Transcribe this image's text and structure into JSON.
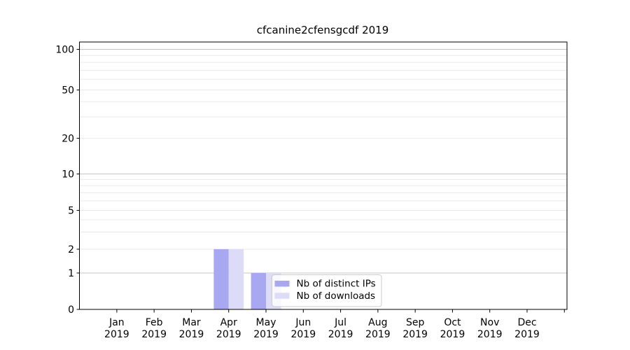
{
  "chart_data": {
    "type": "bar",
    "title": "cfcanine2cfensgcdf 2019",
    "categories": [
      "Jan\n2019",
      "Feb\n2019",
      "Mar\n2019",
      "Apr\n2019",
      "May\n2019",
      "Jun\n2019",
      "Jul\n2019",
      "Aug\n2019",
      "Sep\n2019",
      "Oct\n2019",
      "Nov\n2019",
      "Dec\n2019"
    ],
    "series": [
      {
        "name": "Nb of distinct IPs",
        "color": "#a7a7f2",
        "values": [
          0,
          0,
          0,
          2,
          1,
          0,
          0,
          0,
          0,
          0,
          0,
          0
        ]
      },
      {
        "name": "Nb of downloads",
        "color": "#dcdcf8",
        "values": [
          0,
          0,
          0,
          2,
          1,
          0,
          0,
          0,
          0,
          0,
          0,
          0
        ]
      }
    ],
    "xlabel": "",
    "ylabel": "",
    "yscale": "symlog",
    "y_ticks": [
      0,
      1,
      2,
      5,
      10,
      20,
      50,
      100
    ],
    "y_major_gridlines": [
      1,
      10,
      100
    ],
    "y_minor_gridlines": [
      2,
      3,
      4,
      5,
      6,
      7,
      8,
      9,
      20,
      30,
      40,
      50,
      60,
      70,
      80,
      90
    ],
    "ylim": [
      0,
      115
    ],
    "grid": true,
    "legend": {
      "position": "lower-center"
    },
    "colors": {
      "bar_distinct_ips": "#a7a7f2",
      "bar_downloads": "#dcdcf8",
      "grid_major": "#c6c6c6",
      "grid_minor": "#e9e9e9",
      "spine": "#000000"
    }
  }
}
